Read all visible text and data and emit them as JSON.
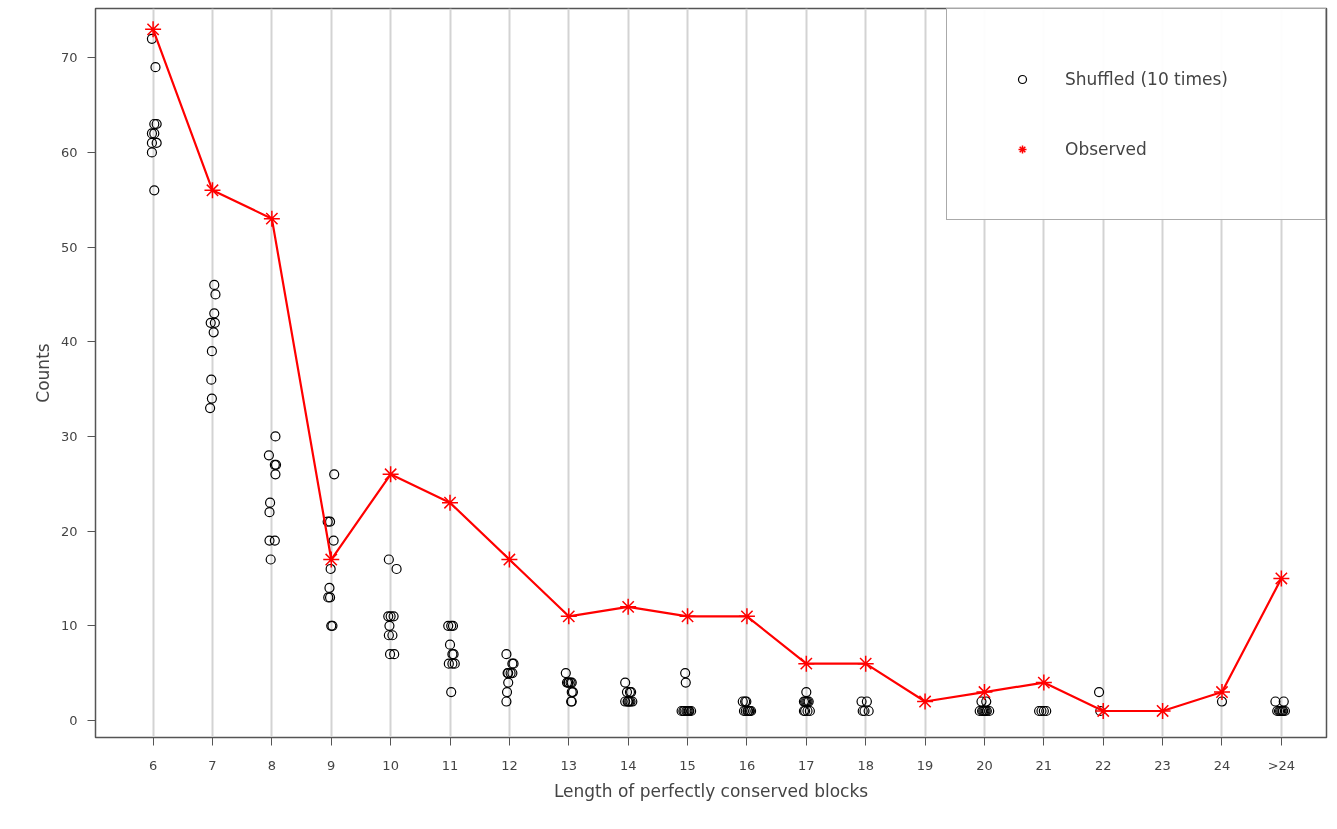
{
  "chart_data": {
    "type": "scatter",
    "xlabel": "Length of perfectly conserved blocks",
    "ylabel": "Counts",
    "xlim": [
      5.03,
      25.76
    ],
    "ylim": [
      -1.8,
      75.2
    ],
    "xticks": [
      6,
      7,
      8,
      9,
      10,
      11,
      12,
      13,
      14,
      15,
      16,
      17,
      18,
      19,
      20,
      21,
      22,
      23,
      24,
      {
        "value": 25,
        "label": ">24"
      }
    ],
    "yticks": [
      0,
      10,
      20,
      30,
      40,
      50,
      60,
      70
    ],
    "grid": "x",
    "legend": "top right",
    "series": [
      {
        "name": "Shuffled (10 times)",
        "marker": "circle",
        "color": "#000000",
        "x": [
          5.98,
          6.04,
          6.02,
          6.06,
          5.98,
          6.02,
          5.98,
          6.06,
          5.98,
          6.02,
          7.03,
          7.05,
          7.03,
          6.97,
          7.04,
          7.02,
          6.99,
          6.98,
          6.99,
          6.96,
          8.06,
          7.95,
          8.05,
          8.07,
          8.06,
          7.97,
          7.96,
          7.96,
          8.05,
          7.98,
          9.05,
          8.94,
          8.98,
          9.04,
          8.99,
          8.97,
          8.95,
          8.98,
          9.0,
          9.02,
          9.97,
          10.1,
          9.96,
          10.0,
          10.05,
          9.98,
          9.97,
          10.03,
          9.99,
          10.06,
          10.97,
          11.05,
          11.02,
          11.0,
          11.06,
          11.04,
          10.98,
          11.04,
          11.08,
          11.02,
          11.95,
          12.05,
          12.07,
          11.98,
          12.02,
          12.05,
          11.97,
          11.98,
          11.96,
          11.95,
          12.95,
          12.97,
          13.0,
          13.05,
          13.03,
          12.99,
          13.07,
          13.05,
          13.04,
          13.05,
          13.95,
          14.05,
          13.98,
          14.03,
          13.95,
          14.0,
          14.04,
          14.07,
          13.99,
          14.02,
          14.96,
          14.97,
          14.9,
          14.95,
          15.0,
          15.03,
          15.06,
          14.93,
          14.98,
          15.02,
          15.93,
          15.97,
          15.99,
          15.95,
          16.01,
          16.04,
          16.07,
          15.98,
          16.02,
          16.05,
          17.0,
          16.96,
          17.02,
          16.98,
          17.04,
          17.0,
          16.96,
          17.06,
          17.02,
          16.98,
          17.93,
          18.02,
          17.95,
          18.05,
          17.98,
          19.92,
          19.96,
          20.0,
          20.04,
          20.08,
          19.95,
          20.03,
          19.98,
          20.02,
          20.92,
          20.96,
          21.0,
          21.04,
          21.93,
          21.95,
          24.0,
          24.9,
          25.04,
          24.93,
          24.96,
          25.0,
          25.03,
          25.06,
          24.98,
          25.02
        ],
        "values": [
          72,
          69,
          63,
          63,
          62,
          62,
          61,
          61,
          60,
          56,
          46,
          45,
          43,
          42,
          42,
          41,
          39,
          36,
          34,
          33,
          30,
          28,
          27,
          27,
          26,
          23,
          22,
          19,
          19,
          17,
          26,
          21,
          21,
          19,
          16,
          14,
          13,
          13,
          10,
          10,
          17,
          16,
          11,
          11,
          11,
          10,
          9,
          9,
          7,
          7,
          10,
          10,
          10,
          8,
          7,
          7,
          6,
          6,
          6,
          3,
          7,
          6,
          6,
          5,
          5,
          5,
          5,
          4,
          3,
          2,
          5,
          4,
          4,
          4,
          4,
          4,
          3,
          3,
          2,
          2,
          4,
          3,
          3,
          3,
          2,
          2,
          2,
          2,
          2,
          2,
          5,
          4,
          1,
          1,
          1,
          1,
          1,
          1,
          1,
          1,
          2,
          2,
          2,
          1,
          1,
          1,
          1,
          1,
          1,
          1,
          3,
          2,
          2,
          2,
          2,
          2,
          1,
          1,
          1,
          1,
          2,
          2,
          1,
          1,
          1,
          1,
          1,
          1,
          1,
          1,
          2,
          2,
          1,
          1,
          1,
          1,
          1,
          1,
          3,
          1,
          2,
          2,
          2,
          1,
          1,
          1,
          1,
          1,
          1,
          1
        ]
      },
      {
        "name": "Observed",
        "type": "line",
        "marker": "cross",
        "color": "#ff0000",
        "x": [
          6,
          7,
          8,
          9,
          10,
          11,
          12,
          13,
          14,
          15,
          16,
          17,
          18,
          19,
          20,
          21,
          22,
          23,
          24,
          25
        ],
        "values": [
          73,
          56,
          53,
          17,
          26,
          23,
          17,
          11,
          12,
          11,
          11,
          6,
          6,
          2,
          3,
          4,
          1,
          1,
          3,
          15
        ]
      }
    ]
  }
}
